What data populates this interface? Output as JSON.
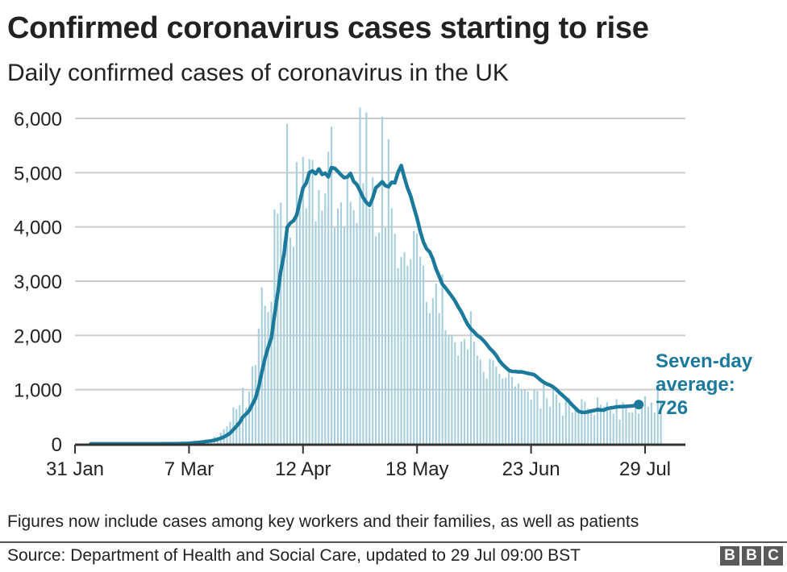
{
  "header": {
    "title": "Confirmed coronavirus cases starting to rise",
    "subtitle": "Daily confirmed cases of coronavirus in the UK"
  },
  "footer": {
    "note": "Figures now include cases among key workers and their families, as well as patients",
    "source": "Source: Department of Health and Social Care, updated to 29 Jul 09:00 BST",
    "logo_letters": [
      "B",
      "B",
      "C"
    ]
  },
  "colors": {
    "bar": "#a8d0dc",
    "line": "#1b7a9c",
    "grid": "#cccccc",
    "axis": "#333333",
    "text": "#222222",
    "logo_bg": "#5a5a5a"
  },
  "annotation": {
    "line1": "Seven-day",
    "line2": "average:",
    "line3": "726"
  },
  "chart_data": {
    "type": "bar",
    "title": "Confirmed coronavirus cases starting to rise",
    "subtitle": "Daily confirmed cases of coronavirus in the UK",
    "xlabel": "",
    "ylabel": "",
    "ylim": [
      0,
      6000
    ],
    "yticks": [
      0,
      1000,
      2000,
      3000,
      4000,
      5000,
      6000
    ],
    "ytick_labels": [
      "0",
      "1,000",
      "2,000",
      "3,000",
      "4,000",
      "5,000",
      "6,000"
    ],
    "xticks_day_index": [
      0,
      36,
      72,
      108,
      144,
      180
    ],
    "xtick_labels": [
      "31 Jan",
      "7 Mar",
      "12 Apr",
      "18 May",
      "23 Jun",
      "29 Jul"
    ],
    "grid": true,
    "legend": "none",
    "x_start": "31 Jan",
    "x_end": "29 Jul",
    "series": [
      {
        "name": "Daily confirmed cases",
        "type": "bar",
        "values": [
          2,
          0,
          0,
          0,
          0,
          1,
          1,
          0,
          0,
          3,
          0,
          0,
          1,
          0,
          0,
          0,
          0,
          0,
          0,
          0,
          0,
          0,
          0,
          0,
          0,
          0,
          4,
          0,
          3,
          0,
          2,
          1,
          5,
          13,
          4,
          11,
          34,
          29,
          48,
          43,
          67,
          46,
          50,
          83,
          134,
          117,
          208,
          271,
          321,
          407,
          676,
          643,
          714,
          1035,
          665,
          967,
          1427,
          1452,
          2129,
          2885,
          2546,
          2433,
          2619,
          4324,
          4244,
          4450,
          3735,
          5903,
          3802,
          3634,
          5195,
          4583,
          5288,
          4342,
          5252,
          5234,
          4103,
          4676,
          4301,
          4617,
          5386,
          5850,
          3985,
          4339,
          4451,
          3996,
          4913,
          4463,
          4309,
          4076,
          6201,
          4806,
          6111,
          4339,
          4913,
          3829,
          3896,
          6032,
          3985,
          5614,
          4343,
          3877,
          3242,
          3446,
          3534,
          3287,
          3403,
          3923,
          3877,
          3450,
          3286,
          2615,
          2412,
          2684,
          2959,
          2412,
          3125,
          2095,
          2013,
          2004,
          1871,
          1625,
          1887,
          1936,
          1741,
          2445,
          1887,
          1629,
          1557,
          1326,
          1204,
          1570,
          1541,
          1425,
          1295,
          1205,
          1221,
          1346,
          1233,
          1061,
          1118,
          1004,
          1006,
          962,
          814,
          1006,
          976,
          652,
          1137,
          839,
          687,
          1001,
          910,
          757,
          519,
          824,
          852,
          581,
          677,
          609,
          826,
          781,
          651,
          624,
          530,
          860,
          725,
          687,
          767,
          623,
          560,
          826,
          446,
          769,
          685,
          581,
          581,
          763,
          560,
          748,
          880,
          687,
          763,
          581,
          1062,
          763
        ],
        "color": "#a8d0dc"
      },
      {
        "name": "Seven-day average",
        "type": "line",
        "values": [
          0,
          0,
          0,
          0,
          0,
          1,
          1,
          1,
          1,
          1,
          1,
          1,
          1,
          1,
          1,
          1,
          1,
          1,
          1,
          1,
          1,
          1,
          1,
          1,
          1,
          1,
          2,
          2,
          3,
          3,
          3,
          4,
          5,
          6,
          7,
          9,
          12,
          17,
          22,
          27,
          34,
          41,
          49,
          57,
          69,
          84,
          104,
          128,
          161,
          200,
          264,
          326,
          393,
          497,
          549,
          614,
          731,
          842,
          1052,
          1322,
          1581,
          1781,
          1951,
          2370,
          2773,
          3191,
          3492,
          3994,
          4073,
          4114,
          4217,
          4473,
          4719,
          4806,
          5004,
          5032,
          4980,
          5067,
          4968,
          4992,
          4924,
          5094,
          5081,
          5023,
          4961,
          4907,
          4922,
          4986,
          4837,
          4781,
          4665,
          4540,
          4450,
          4396,
          4534,
          4722,
          4774,
          4832,
          4761,
          4740,
          4824,
          4813,
          5005,
          5133,
          4912,
          4718,
          4569,
          4357,
          4162,
          3919,
          3722,
          3597,
          3538,
          3410,
          3225,
          3087,
          2945,
          2876,
          2796,
          2720,
          2634,
          2525,
          2433,
          2312,
          2202,
          2119,
          2064,
          2000,
          1960,
          1904,
          1836,
          1759,
          1702,
          1630,
          1535,
          1464,
          1409,
          1357,
          1336,
          1335,
          1327,
          1327,
          1316,
          1300,
          1289,
          1274,
          1228,
          1178,
          1136,
          1105,
          1082,
          1048,
          1003,
          943,
          893,
          841,
          781,
          716,
          659,
          601,
          582,
          580,
          591,
          607,
          616,
          635,
          624,
          624,
          650,
          662,
          672,
          681,
          687,
          689,
          692,
          697,
          701,
          711,
          726
        ],
        "color": "#1b7a9c"
      }
    ],
    "annotations": [
      {
        "text": "Seven-day average: 726",
        "x": "29 Jul",
        "y": 726
      }
    ]
  }
}
